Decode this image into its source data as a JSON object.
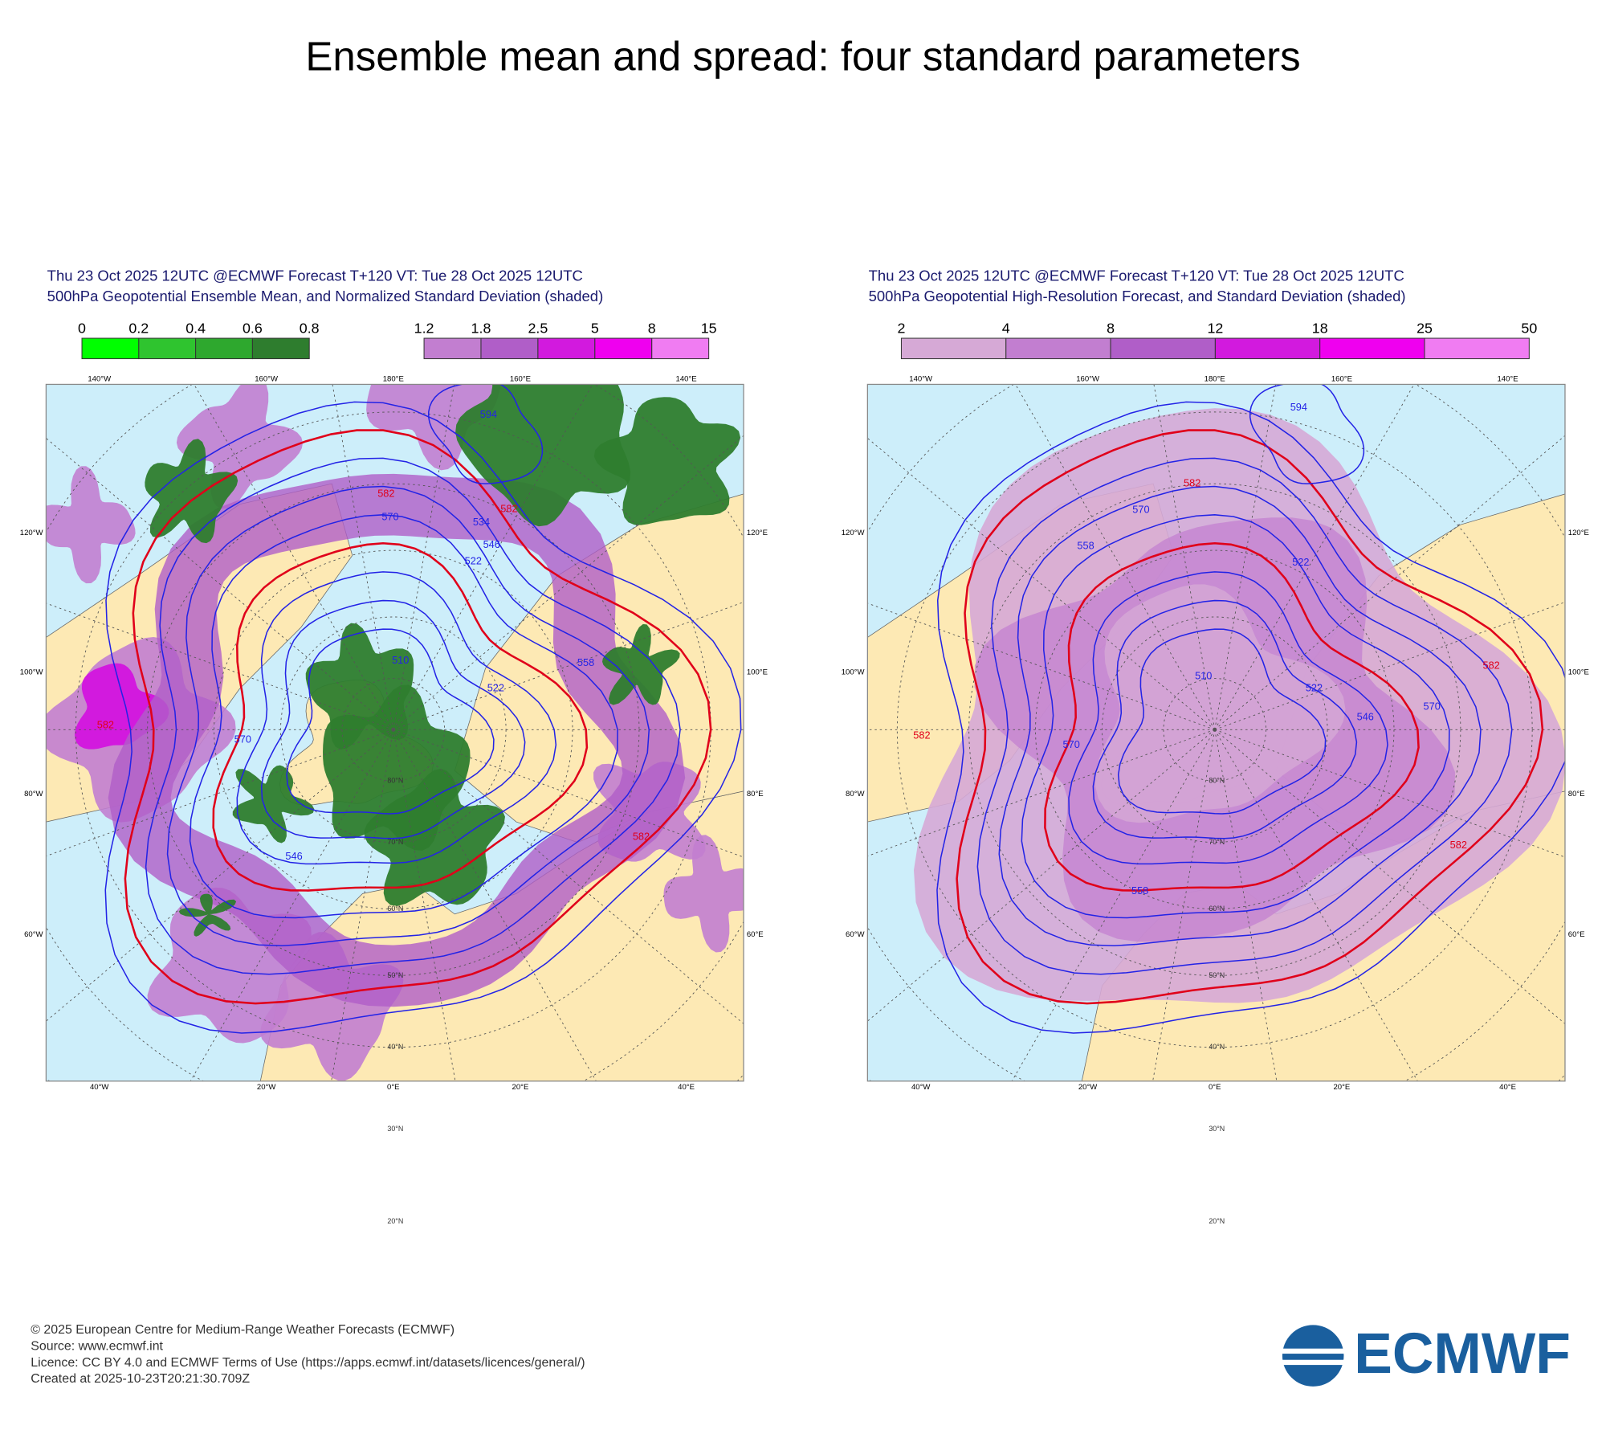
{
  "title": "Ensemble mean and spread: four standard parameters",
  "panels": [
    {
      "header": [
        "Thu 23 Oct 2025 12UTC @ECMWF Forecast T+120 VT: Tue 28 Oct 2025 12UTC",
        "500hPa Geopotential Ensemble Mean, and Normalized Standard Deviation (shaded)"
      ],
      "colorbars": [
        {
          "ticks": [
            0,
            0.2,
            0.4,
            0.6,
            0.8
          ],
          "colors": [
            "#00ff00",
            "#2fc42f",
            "#2ea82e",
            "#2e7d2e"
          ]
        },
        {
          "ticks": [
            1.2,
            1.8,
            2.5,
            5,
            8,
            15
          ],
          "colors": [
            "#c27ed0",
            "#b05ec8",
            "#d21ade",
            "#ef00ef",
            "#f07cf2"
          ]
        }
      ],
      "lon_top": [
        "140°W",
        "160°W",
        "180°E",
        "160°E",
        "140°E"
      ],
      "lon_bottom": [
        "40°W",
        "20°W",
        "0°E",
        "20°E",
        "40°E"
      ],
      "side_left": [
        "120°W",
        "100°W",
        "80°W",
        "60°W"
      ],
      "side_right": [
        "120°E",
        "100°E",
        "80°E",
        "60°E"
      ],
      "lat_labels": [
        "80°N",
        "70°N",
        "60°N",
        "50°N",
        "40°N",
        "30°N",
        "20°N"
      ],
      "contour_labels": [
        "582",
        "582",
        "582",
        "582",
        "570",
        "570",
        "558",
        "546",
        "546",
        "534",
        "522",
        "522",
        "510",
        "594"
      ]
    },
    {
      "header": [
        "Thu 23 Oct 2025 12UTC @ECMWF Forecast T+120 VT: Tue 28 Oct 2025 12UTC",
        "500hPa Geopotential High-Resolution Forecast, and Standard Deviation (shaded)"
      ],
      "colorbars": [
        {
          "ticks": [
            2,
            4,
            8,
            12,
            18,
            25,
            50
          ],
          "colors": [
            "#d6a9d6",
            "#c27ed0",
            "#b05ec8",
            "#d21ade",
            "#ef00ef",
            "#f07cf2"
          ]
        }
      ],
      "lon_top": [
        "140°W",
        "160°W",
        "180°E",
        "160°E",
        "140°E"
      ],
      "lon_bottom": [
        "40°W",
        "20°W",
        "0°E",
        "20°E",
        "40°E"
      ],
      "side_left": [
        "120°W",
        "100°W",
        "80°W",
        "60°W"
      ],
      "side_right": [
        "120°E",
        "100°E",
        "80°E",
        "60°E"
      ],
      "lat_labels": [
        "80°N",
        "70°N",
        "60°N",
        "50°N",
        "40°N",
        "30°N",
        "20°N"
      ],
      "contour_labels": [
        "582",
        "582",
        "582",
        "582",
        "570",
        "570",
        "570",
        "558",
        "558",
        "546",
        "522",
        "522",
        "510",
        "594"
      ]
    }
  ],
  "footer": [
    "© 2025 European Centre for Medium-Range Weather Forecasts (ECMWF)",
    "Source: www.ecmwf.int",
    "Licence: CC BY 4.0 and ECMWF Terms of Use (https://apps.ecmwf.int/datasets/licences/general/)",
    "Created at 2025-10-23T20:21:30.709Z"
  ],
  "logo": "ECMWF"
}
